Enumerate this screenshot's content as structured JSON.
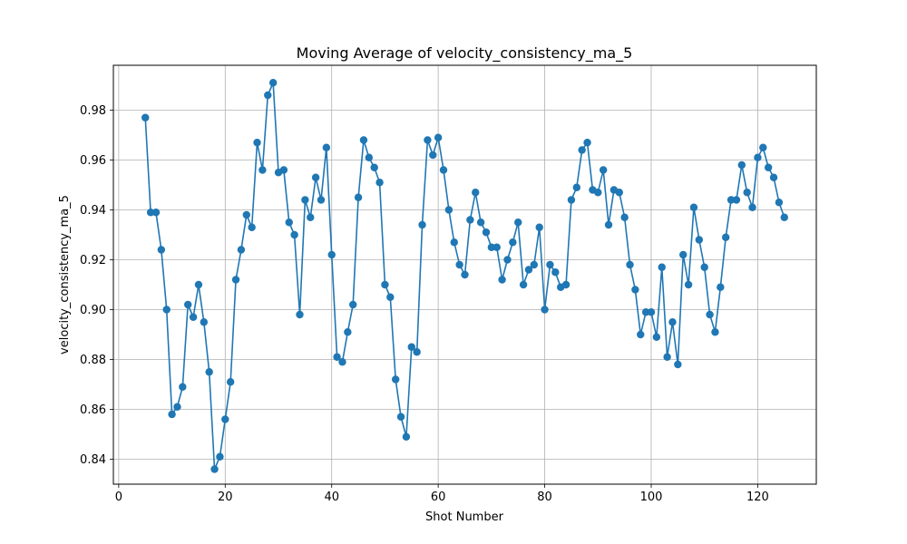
{
  "chart_data": {
    "type": "line",
    "title": "Moving Average of velocity_consistency_ma_5",
    "xlabel": "Shot Number",
    "ylabel": "velocity_consistency_ma_5",
    "xlim": [
      -1,
      131
    ],
    "ylim": [
      0.83,
      0.998
    ],
    "xticks": [
      0,
      20,
      40,
      60,
      80,
      100,
      120
    ],
    "yticks": [
      0.84,
      0.86,
      0.88,
      0.9,
      0.92,
      0.94,
      0.96,
      0.98
    ],
    "xtick_labels": [
      "0",
      "20",
      "40",
      "60",
      "80",
      "100",
      "120"
    ],
    "ytick_labels": [
      "0.84",
      "0.86",
      "0.88",
      "0.90",
      "0.92",
      "0.94",
      "0.96",
      "0.98"
    ],
    "grid": true,
    "legend": "none",
    "marker": "circle",
    "color": "#1f77b4",
    "x": [
      5,
      6,
      7,
      8,
      9,
      10,
      11,
      12,
      13,
      14,
      15,
      16,
      17,
      18,
      19,
      20,
      21,
      22,
      23,
      24,
      25,
      26,
      27,
      28,
      29,
      30,
      31,
      32,
      33,
      34,
      35,
      36,
      37,
      38,
      39,
      40,
      41,
      42,
      43,
      44,
      45,
      46,
      47,
      48,
      49,
      50,
      51,
      52,
      53,
      54,
      55,
      56,
      57,
      58,
      59,
      60,
      61,
      62,
      63,
      64,
      65,
      66,
      67,
      68,
      69,
      70,
      71,
      72,
      73,
      74,
      75,
      76,
      77,
      78,
      79,
      80,
      81,
      82,
      83,
      84,
      85,
      86,
      87,
      88,
      89,
      90,
      91,
      92,
      93,
      94,
      95,
      96,
      97,
      98,
      99,
      100,
      101,
      102,
      103,
      104,
      105,
      106,
      107,
      108,
      109,
      110,
      111,
      112,
      113,
      114,
      115,
      116,
      117,
      118,
      119,
      120,
      121,
      122,
      123,
      124,
      125
    ],
    "y": [
      0.977,
      0.939,
      0.939,
      0.924,
      0.9,
      0.858,
      0.861,
      0.869,
      0.902,
      0.897,
      0.91,
      0.895,
      0.875,
      0.836,
      0.841,
      0.856,
      0.871,
      0.912,
      0.924,
      0.938,
      0.933,
      0.967,
      0.956,
      0.986,
      0.991,
      0.955,
      0.956,
      0.935,
      0.93,
      0.898,
      0.944,
      0.937,
      0.953,
      0.944,
      0.965,
      0.922,
      0.881,
      0.879,
      0.891,
      0.902,
      0.945,
      0.968,
      0.961,
      0.957,
      0.951,
      0.91,
      0.905,
      0.872,
      0.857,
      0.849,
      0.885,
      0.883,
      0.934,
      0.968,
      0.962,
      0.969,
      0.956,
      0.94,
      0.927,
      0.918,
      0.914,
      0.936,
      0.947,
      0.935,
      0.931,
      0.925,
      0.925,
      0.912,
      0.92,
      0.927,
      0.935,
      0.91,
      0.916,
      0.918,
      0.933,
      0.9,
      0.918,
      0.915,
      0.909,
      0.91,
      0.944,
      0.949,
      0.964,
      0.967,
      0.948,
      0.947,
      0.956,
      0.934,
      0.948,
      0.947,
      0.937,
      0.918,
      0.908,
      0.89,
      0.899,
      0.899,
      0.889,
      0.917,
      0.881,
      0.895,
      0.878,
      0.922,
      0.91,
      0.941,
      0.928,
      0.917,
      0.898,
      0.891,
      0.909,
      0.929,
      0.944,
      0.944,
      0.958,
      0.947,
      0.941,
      0.961,
      0.965,
      0.957,
      0.953,
      0.943,
      0.937
    ]
  }
}
